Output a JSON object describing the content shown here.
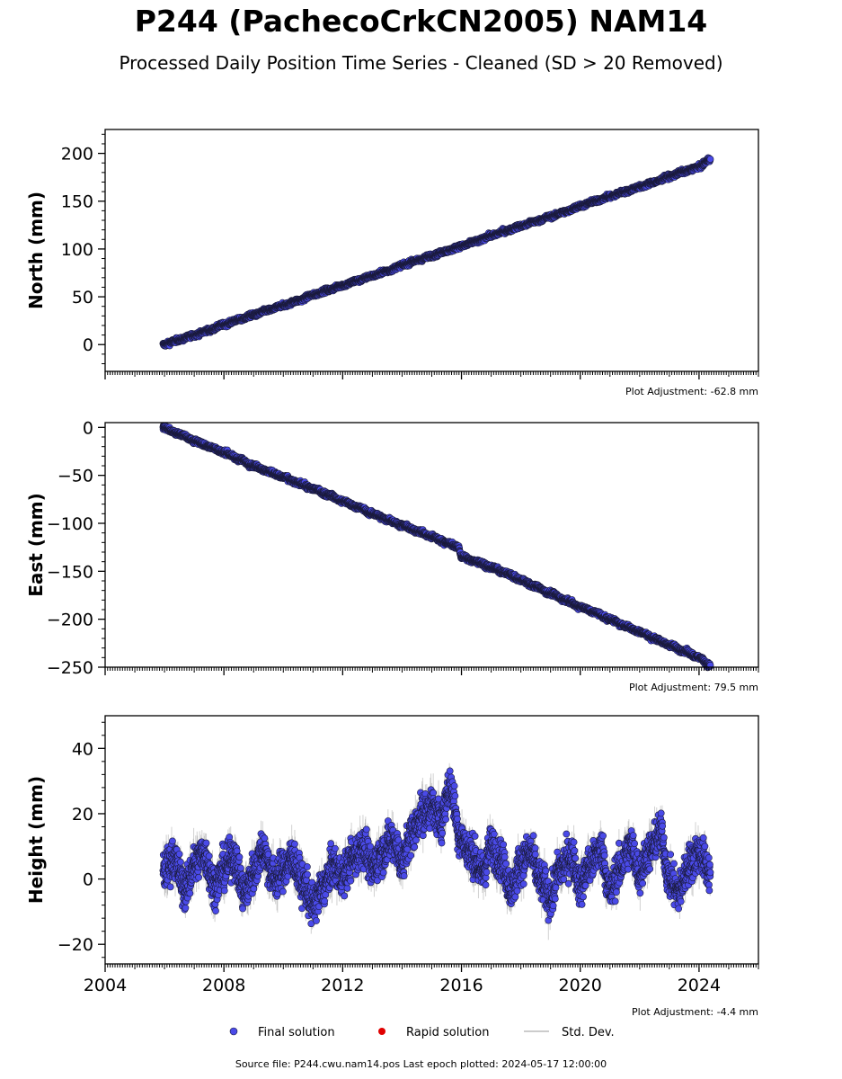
{
  "title": "P244 (PachecoCrkCN2005) NAM14",
  "subtitle": "Processed Daily Position Time Series - Cleaned (SD > 20 Removed)",
  "source_line": "Source file: P244.cwu.nam14.pos  Last epoch plotted: 2024-05-17 12:00:00",
  "legend": [
    {
      "label": "Final solution",
      "color": "#4a4ae8"
    },
    {
      "label": "Rapid solution",
      "color": "#e00000"
    },
    {
      "label": "Std. Dev.",
      "color": "#cccccc"
    }
  ],
  "colors": {
    "final": "#4a4ae8",
    "rapid": "#e00000",
    "stddev": "#999999",
    "edge": "#1a1a3a"
  },
  "chart_data": [
    {
      "type": "scatter",
      "ylabel": "North (mm)",
      "xlim": [
        2004,
        2026
      ],
      "ylim": [
        -28,
        225
      ],
      "yticks": [
        0,
        50,
        100,
        150,
        200
      ],
      "ytick_labels": [
        "0",
        "50",
        "100",
        "150",
        "200"
      ],
      "adjustment": "Plot Adjustment: -62.8 mm",
      "x": [
        2005.95,
        2006.5,
        2007.0,
        2007.5,
        2008.0,
        2008.5,
        2009.0,
        2009.5,
        2010.0,
        2010.5,
        2011.0,
        2011.5,
        2012.0,
        2012.5,
        2013.0,
        2013.5,
        2014.0,
        2014.5,
        2015.0,
        2015.5,
        2016.0,
        2016.5,
        2017.0,
        2017.5,
        2018.0,
        2018.5,
        2019.0,
        2019.5,
        2020.0,
        2020.5,
        2021.0,
        2021.5,
        2022.0,
        2022.5,
        2023.0,
        2023.5,
        2024.0,
        2024.38
      ],
      "y": [
        0,
        5,
        10,
        15,
        21,
        26,
        31,
        36,
        41,
        46,
        52,
        57,
        62,
        67,
        72,
        77,
        83,
        88,
        93,
        98,
        103,
        108,
        114,
        119,
        124,
        129,
        134,
        139,
        145,
        150,
        155,
        160,
        165,
        170,
        176,
        181,
        186,
        194
      ],
      "noise": 1.6,
      "sd": 1.2
    },
    {
      "type": "scatter",
      "ylabel": "East (mm)",
      "xlim": [
        2004,
        2026
      ],
      "ylim": [
        -250,
        5
      ],
      "yticks": [
        0,
        -50,
        -100,
        -150,
        -200,
        -250
      ],
      "ytick_labels": [
        "0",
        "−50",
        "−100",
        "−150",
        "−200",
        "−250"
      ],
      "adjustment": "Plot Adjustment: 79.5 mm",
      "x": [
        2005.95,
        2006.5,
        2007.0,
        2007.5,
        2008.0,
        2008.5,
        2009.0,
        2009.5,
        2010.0,
        2010.5,
        2011.0,
        2011.5,
        2012.0,
        2012.5,
        2013.0,
        2013.5,
        2014.0,
        2014.5,
        2015.0,
        2015.5,
        2015.9,
        2016.0,
        2016.5,
        2017.0,
        2017.5,
        2018.0,
        2018.5,
        2019.0,
        2019.5,
        2020.0,
        2020.5,
        2021.0,
        2021.5,
        2022.0,
        2022.5,
        2023.0,
        2023.5,
        2024.0,
        2024.38
      ],
      "y": [
        0,
        -7,
        -14,
        -20,
        -26,
        -33,
        -40,
        -46,
        -52,
        -58,
        -64,
        -70,
        -77,
        -83,
        -90,
        -96,
        -102,
        -108,
        -114,
        -120,
        -125,
        -135,
        -140,
        -146,
        -152,
        -159,
        -166,
        -173,
        -180,
        -187,
        -193,
        -200,
        -207,
        -213,
        -220,
        -227,
        -233,
        -240,
        -248
      ],
      "noise": 1.7,
      "sd": 1.3
    },
    {
      "type": "scatter",
      "ylabel": "Height (mm)",
      "xlim": [
        2004,
        2026
      ],
      "ylim": [
        -26,
        50
      ],
      "yticks": [
        -20,
        0,
        20,
        40
      ],
      "ytick_labels": [
        "−20",
        "0",
        "20",
        "40"
      ],
      "adjustment": "Plot Adjustment: -4.4 mm",
      "xticks": [
        2004,
        2008,
        2012,
        2016,
        2020,
        2024
      ],
      "xtick_labels": [
        "2004",
        "2008",
        "2012",
        "2016",
        "2020",
        "2024"
      ],
      "x": [
        2005.95,
        2006.3,
        2006.7,
        2007.0,
        2007.3,
        2007.7,
        2008.0,
        2008.3,
        2008.7,
        2009.0,
        2009.3,
        2009.7,
        2010.0,
        2010.3,
        2010.7,
        2011.0,
        2011.3,
        2011.7,
        2012.0,
        2012.3,
        2012.7,
        2013.0,
        2013.3,
        2013.7,
        2014.0,
        2014.3,
        2014.7,
        2015.0,
        2015.3,
        2015.6,
        2016.0,
        2016.3,
        2016.7,
        2017.0,
        2017.3,
        2017.7,
        2018.0,
        2018.3,
        2018.7,
        2019.0,
        2019.3,
        2019.7,
        2020.0,
        2020.3,
        2020.7,
        2021.0,
        2021.3,
        2021.7,
        2022.0,
        2022.3,
        2022.7,
        2023.0,
        2023.3,
        2023.7,
        2024.0,
        2024.38
      ],
      "y": [
        2,
        6,
        -3,
        4,
        8,
        -2,
        3,
        7,
        -4,
        2,
        9,
        0,
        3,
        6,
        -2,
        -8,
        -3,
        4,
        1,
        6,
        10,
        3,
        8,
        12,
        5,
        14,
        20,
        22,
        18,
        28,
        12,
        8,
        2,
        10,
        6,
        -3,
        5,
        8,
        -1,
        -6,
        3,
        7,
        -2,
        4,
        9,
        -4,
        3,
        10,
        2,
        8,
        14,
        0,
        -4,
        5,
        8,
        2
      ],
      "noise": 4.2,
      "sd": 4.0
    }
  ]
}
